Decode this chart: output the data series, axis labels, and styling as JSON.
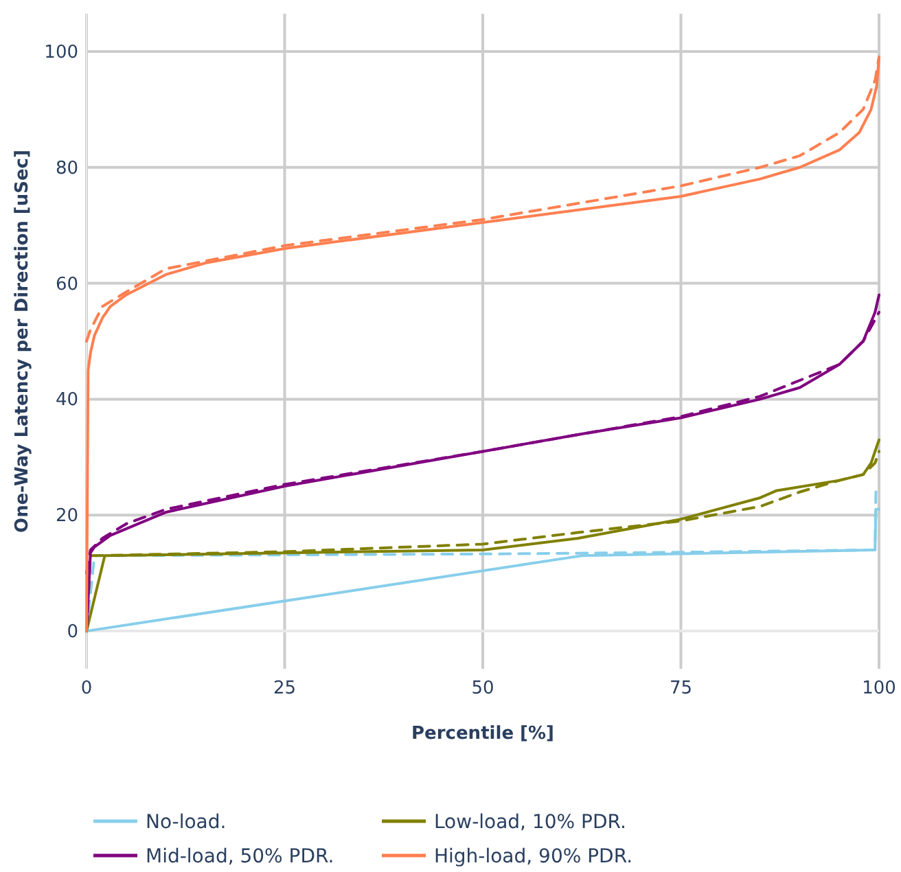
{
  "chart_data": {
    "type": "line",
    "xlabel": "Percentile [%]",
    "ylabel": "One-Way Latency per Direction [uSec]",
    "xlim": [
      0,
      100
    ],
    "xticks": [
      0,
      25,
      50,
      75,
      100
    ],
    "ylim": [
      -6.5,
      106.5
    ],
    "yticks": [
      0,
      20,
      40,
      60,
      80,
      100
    ],
    "grid": true,
    "legend": "bottom",
    "line_style": "solid",
    "marker": "none",
    "series": [
      {
        "name": "No-load.",
        "color": "#87ceeb",
        "x": [
          0,
          62.5,
          99.5,
          99.6,
          100
        ],
        "values": [
          0,
          13,
          14,
          21,
          21
        ]
      },
      {
        "color": "#87ceeb",
        "line_style": "dashed",
        "x": [
          0,
          1,
          50,
          75,
          99.5,
          99.6,
          100
        ],
        "values": [
          0,
          13,
          13.3,
          13.6,
          14,
          24,
          24
        ]
      },
      {
        "name": "Low-load, 10% PDR.",
        "color": "#808000",
        "x": [
          0,
          2.3,
          25,
          50,
          62,
          75,
          85,
          87,
          95,
          98,
          99,
          100
        ],
        "values": [
          0,
          13,
          13.5,
          14,
          16,
          19.3,
          23,
          24.2,
          26,
          27,
          29,
          33
        ]
      },
      {
        "color": "#808000",
        "line_style": "dashed",
        "x": [
          0,
          0.5,
          25,
          50,
          62,
          75,
          85,
          90,
          95,
          98,
          99.5,
          100
        ],
        "values": [
          0,
          13,
          13.7,
          15,
          17,
          19,
          21.5,
          24,
          26,
          27,
          29,
          31
        ]
      },
      {
        "name": "Mid-load, 50% PDR.",
        "color": "#800080",
        "x": [
          0,
          0.5,
          1,
          3,
          10,
          25,
          50,
          62.5,
          75,
          85,
          90,
          95,
          98,
          99.5,
          100
        ],
        "values": [
          0,
          13.5,
          14.5,
          16.5,
          20.5,
          25,
          31,
          34,
          36.8,
          40,
          42,
          46,
          50,
          55,
          58
        ]
      },
      {
        "color": "#800080",
        "line_style": "dashed",
        "x": [
          0,
          0.5,
          2,
          5,
          10,
          25,
          50,
          75,
          85,
          95,
          98,
          100
        ],
        "values": [
          10,
          14,
          16,
          18.5,
          21,
          25.3,
          31,
          37,
          40.5,
          46,
          50,
          55
        ]
      },
      {
        "name": "High-load, 90% PDR.",
        "color": "#ff7f50",
        "x": [
          0,
          0.2,
          0.5,
          1,
          2,
          3,
          5,
          10,
          15,
          25,
          50,
          75,
          85,
          90,
          95,
          97.5,
          99,
          99.7,
          100
        ],
        "values": [
          0,
          45,
          48,
          51,
          54,
          56,
          58,
          61.5,
          63.5,
          66,
          70.5,
          75,
          78,
          80,
          83,
          86,
          90,
          94,
          99
        ]
      },
      {
        "color": "#ff7f50",
        "line_style": "dashed",
        "x": [
          0,
          0.5,
          2,
          5,
          10,
          25,
          50,
          75,
          85,
          90,
          95,
          98,
          99.5,
          100
        ],
        "values": [
          50,
          52,
          56,
          58.5,
          62.5,
          66.5,
          71,
          76.8,
          80,
          82,
          86,
          90,
          95,
          99
        ]
      }
    ]
  }
}
